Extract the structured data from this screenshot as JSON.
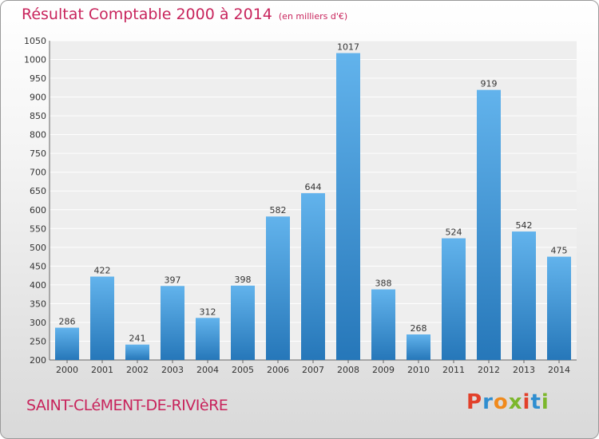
{
  "header": {
    "title": "Résultat Comptable 2000 à 2014",
    "subtitle": "(en milliers d'€)"
  },
  "footer": {
    "commune": "SAINT-CLéMENT-DE-RIVIèRE",
    "logo": "Proxiti",
    "logo_colors": [
      "#e2402a",
      "#2f8ed0",
      "#f08a1c",
      "#7cb72c",
      "#e2402a",
      "#2f8ed0",
      "#7cb72c"
    ]
  },
  "colors": {
    "accent": "#c8245c",
    "bar_light": "#62b3ec",
    "bar_dark": "#2677b9"
  },
  "chart_data": {
    "type": "bar",
    "categories": [
      "2000",
      "2001",
      "2002",
      "2003",
      "2004",
      "2005",
      "2006",
      "2007",
      "2008",
      "2009",
      "2010",
      "2011",
      "2012",
      "2013",
      "2014"
    ],
    "values": [
      286,
      422,
      241,
      397,
      312,
      398,
      582,
      644,
      1017,
      388,
      268,
      524,
      919,
      542,
      475
    ],
    "ylim": [
      200,
      1050
    ],
    "yticks": [
      200,
      250,
      300,
      350,
      400,
      450,
      500,
      550,
      600,
      650,
      700,
      750,
      800,
      850,
      900,
      950,
      1000,
      1050
    ],
    "grid": true,
    "legend": false,
    "data_labels": true
  }
}
